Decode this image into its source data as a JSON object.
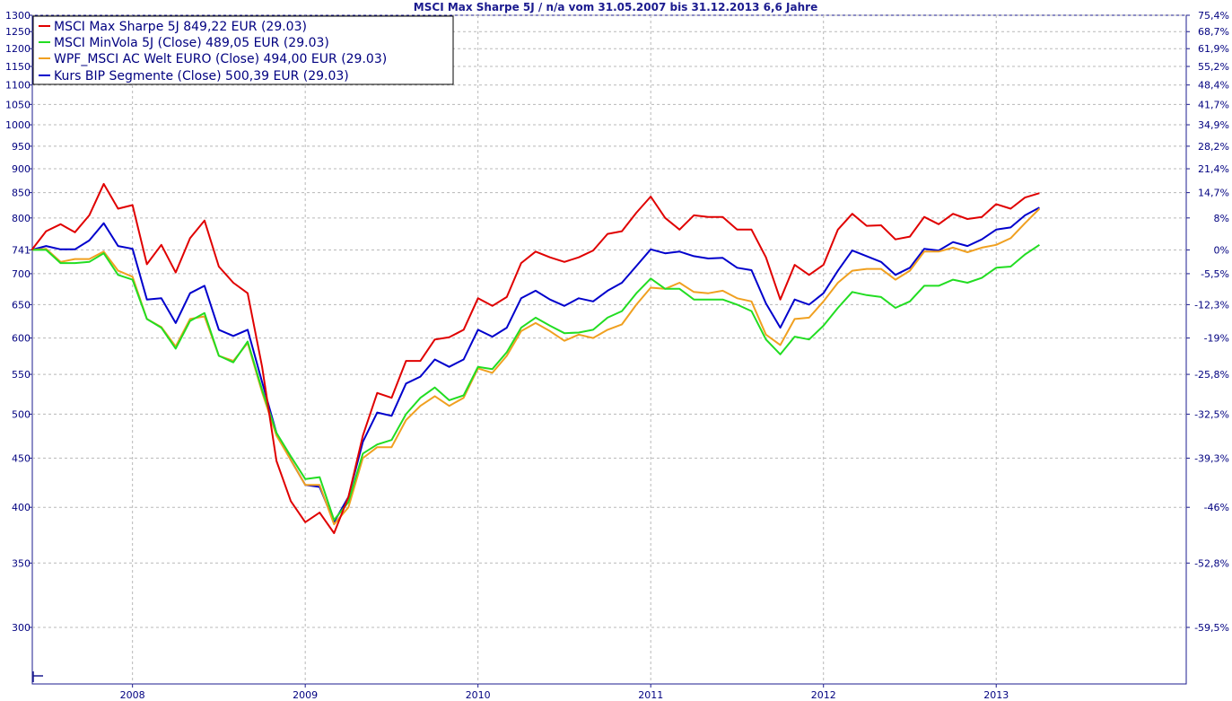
{
  "chart_data": {
    "type": "line",
    "title": "MSCI Max Sharpe 5J / n/a vom 31.05.2007 bis 31.12.2013 6,6 Jahre",
    "y_scale": "log",
    "ylim": [
      262,
      1300
    ],
    "left_ticks": [
      {
        "label": "1300",
        "value": 1300
      },
      {
        "label": "1250",
        "value": 1250
      },
      {
        "label": "1200",
        "value": 1200
      },
      {
        "label": "1150",
        "value": 1150
      },
      {
        "label": "1100",
        "value": 1100
      },
      {
        "label": "1050",
        "value": 1050
      },
      {
        "label": "1000",
        "value": 1000
      },
      {
        "label": "950",
        "value": 950
      },
      {
        "label": "900",
        "value": 900
      },
      {
        "label": "850",
        "value": 850
      },
      {
        "label": "800",
        "value": 800
      },
      {
        "label": "741",
        "value": 741
      },
      {
        "label": "700",
        "value": 700
      },
      {
        "label": "650",
        "value": 650
      },
      {
        "label": "600",
        "value": 600
      },
      {
        "label": "550",
        "value": 550
      },
      {
        "label": "500",
        "value": 500
      },
      {
        "label": "450",
        "value": 450
      },
      {
        "label": "400",
        "value": 400
      },
      {
        "label": "350",
        "value": 350
      },
      {
        "label": "300",
        "value": 300
      }
    ],
    "right_ticks": [
      {
        "label": "75,4%",
        "value": 1300
      },
      {
        "label": "68,7%",
        "value": 1250
      },
      {
        "label": "61,9%",
        "value": 1200
      },
      {
        "label": "55,2%",
        "value": 1150
      },
      {
        "label": "48,4%",
        "value": 1100
      },
      {
        "label": "41,7%",
        "value": 1050
      },
      {
        "label": "34,9%",
        "value": 1000
      },
      {
        "label": "28,2%",
        "value": 950
      },
      {
        "label": "21,4%",
        "value": 900
      },
      {
        "label": "14,7%",
        "value": 850
      },
      {
        "label": "8%",
        "value": 800
      },
      {
        "label": "0%",
        "value": 741
      },
      {
        "label": "-5,5%",
        "value": 700
      },
      {
        "label": "-12,3%",
        "value": 650
      },
      {
        "label": "-19%",
        "value": 600
      },
      {
        "label": "-25,8%",
        "value": 550
      },
      {
        "label": "-32,5%",
        "value": 500
      },
      {
        "label": "-39,3%",
        "value": 450
      },
      {
        "label": "-46%",
        "value": 400
      },
      {
        "label": "-52,8%",
        "value": 350
      },
      {
        "label": "-59,5%",
        "value": 300
      }
    ],
    "xlim": [
      2007.42,
      2014.1
    ],
    "x_ticks": [
      {
        "label": "2008",
        "value": 2008.0
      },
      {
        "label": "2009",
        "value": 2009.0
      },
      {
        "label": "2010",
        "value": 2010.0
      },
      {
        "label": "2011",
        "value": 2011.0
      },
      {
        "label": "2012",
        "value": 2012.0
      },
      {
        "label": "2013",
        "value": 2013.0
      }
    ],
    "x_start": 2007.4167,
    "x_step": 0.0833333,
    "series": [
      {
        "name": "MSCI Max Sharpe 5J 849,22 EUR (29.03)",
        "color": "#e00000",
        "values": [
          741,
          775,
          788,
          773,
          805,
          868,
          818,
          825,
          716,
          750,
          702,
          762,
          795,
          712,
          685,
          668,
          560,
          447,
          406,
          386,
          395,
          376,
          410,
          475,
          526,
          520,
          568,
          568,
          598,
          601,
          612,
          660,
          648,
          662,
          718,
          738,
          728,
          720,
          728,
          740,
          770,
          775,
          810,
          842,
          800,
          778,
          805,
          802,
          802,
          778,
          778,
          728,
          658,
          715,
          698,
          715,
          778,
          808,
          785,
          786,
          760,
          765,
          802,
          788,
          808,
          798,
          802,
          827,
          818,
          840,
          849
        ]
      },
      {
        "name": "MSCI MinVola 5J (Close) 489,05 EUR (29.03)",
        "color": "#22dd22",
        "values": [
          741,
          741,
          718,
          718,
          720,
          735,
          698,
          690,
          628,
          615,
          585,
          625,
          637,
          575,
          566,
          595,
          530,
          478,
          452,
          428,
          430,
          388,
          405,
          455,
          465,
          470,
          500,
          520,
          533,
          517,
          523,
          560,
          557,
          580,
          615,
          630,
          618,
          607,
          608,
          612,
          630,
          640,
          668,
          692,
          675,
          675,
          658,
          658,
          658,
          650,
          640,
          598,
          577,
          602,
          598,
          618,
          645,
          670,
          665,
          662,
          645,
          655,
          680,
          680,
          690,
          685,
          693,
          710,
          712,
          733,
          750
        ]
      },
      {
        "name": "WPF_MSCI AC Welt EURO (Close) 494,00 EUR (29.03)",
        "color": "#f0a020",
        "values": [
          741,
          743,
          720,
          725,
          725,
          738,
          705,
          695,
          628,
          616,
          588,
          628,
          632,
          575,
          568,
          593,
          527,
          475,
          448,
          422,
          422,
          384,
          400,
          450,
          462,
          462,
          493,
          510,
          522,
          510,
          520,
          558,
          552,
          575,
          610,
          622,
          610,
          596,
          605,
          600,
          612,
          620,
          650,
          677,
          675,
          685,
          670,
          668,
          672,
          660,
          655,
          605,
          590,
          628,
          630,
          655,
          685,
          705,
          708,
          708,
          690,
          705,
          738,
          738,
          745,
          737,
          745,
          750,
          762,
          790,
          818
        ]
      },
      {
        "name": "Kurs BIP Segmente (Close) 500,39 EUR (29.03)",
        "color": "#0000cc",
        "values": [
          741,
          748,
          742,
          742,
          758,
          790,
          748,
          743,
          658,
          660,
          622,
          668,
          680,
          612,
          603,
          612,
          540,
          478,
          448,
          422,
          420,
          386,
          410,
          468,
          502,
          498,
          538,
          547,
          570,
          560,
          570,
          612,
          602,
          615,
          660,
          672,
          658,
          648,
          660,
          655,
          672,
          685,
          713,
          742,
          735,
          738,
          730,
          726,
          727,
          710,
          706,
          652,
          615,
          658,
          650,
          668,
          705,
          740,
          730,
          720,
          698,
          710,
          743,
          740,
          755,
          748,
          760,
          778,
          782,
          805,
          820
        ]
      }
    ]
  }
}
